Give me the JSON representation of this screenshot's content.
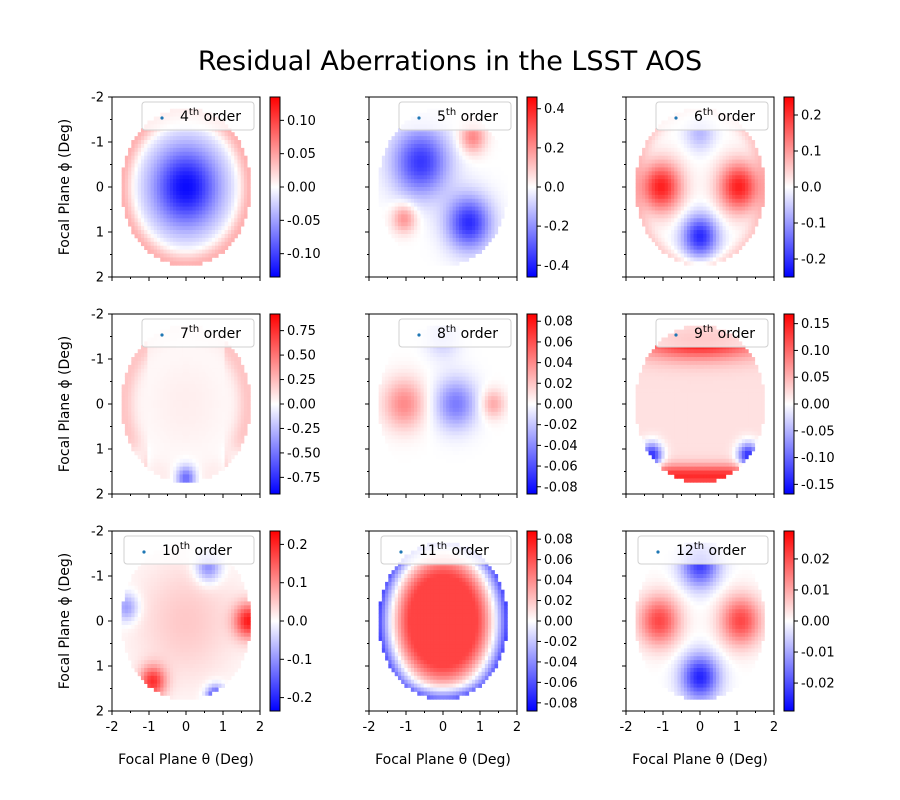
{
  "title": "Residual Aberrations in the LSST AOS",
  "chart_data": {
    "type": "heatmap",
    "title": "Residual Aberrations in the LSST AOS",
    "xlabel": "Focal  Plane  θ  (Deg)",
    "ylabel": "Focal  Plane  ϕ  (Deg)",
    "xlim": [
      -2,
      2
    ],
    "ylim": [
      -2,
      2
    ],
    "xticks": [
      "-2",
      "-1",
      "0",
      "1",
      "2"
    ],
    "yticks": [
      "-2",
      "-1",
      "0",
      "1",
      "2"
    ],
    "colormap": "bwr",
    "colors": {
      "negative": "#0000ff",
      "zero": "#ffffff",
      "positive": "#ff0000",
      "legend_marker": "#1f77b4"
    },
    "legend_placement": "upper right",
    "panels": [
      {
        "label_sup": "th",
        "label_num": "4",
        "label_suffix": " order",
        "vmin": -0.135,
        "vmax": 0.135,
        "cbar_ticks": [
          "0.10",
          "0.05",
          "0.00",
          "-0.05",
          "-0.10"
        ],
        "cbar_values": [
          0.1,
          0.05,
          0.0,
          -0.05,
          -0.1
        ]
      },
      {
        "label_sup": "th",
        "label_num": "5",
        "label_suffix": " order",
        "vmin": -0.46,
        "vmax": 0.46,
        "cbar_ticks": [
          "0.4",
          "0.2",
          "0.0",
          "-0.2",
          "-0.4"
        ],
        "cbar_values": [
          0.4,
          0.2,
          0.0,
          -0.2,
          -0.4
        ]
      },
      {
        "label_sup": "th",
        "label_num": "6",
        "label_suffix": " order",
        "vmin": -0.25,
        "vmax": 0.25,
        "cbar_ticks": [
          "0.2",
          "0.1",
          "0.0",
          "-0.1",
          "-0.2"
        ],
        "cbar_values": [
          0.2,
          0.1,
          0.0,
          -0.1,
          -0.2
        ]
      },
      {
        "label_sup": "th",
        "label_num": "7",
        "label_suffix": " order",
        "vmin": -0.92,
        "vmax": 0.92,
        "cbar_ticks": [
          "0.75",
          "0.50",
          "0.25",
          "0.00",
          "-0.25",
          "-0.50",
          "-0.75"
        ],
        "cbar_values": [
          0.75,
          0.5,
          0.25,
          0,
          -0.25,
          -0.5,
          -0.75
        ]
      },
      {
        "label_sup": "th",
        "label_num": "8",
        "label_suffix": " order",
        "vmin": -0.087,
        "vmax": 0.087,
        "cbar_ticks": [
          "0.08",
          "0.06",
          "0.04",
          "0.02",
          "0.00",
          "-0.02",
          "-0.04",
          "-0.06",
          "-0.08"
        ],
        "cbar_values": [
          0.08,
          0.06,
          0.04,
          0.02,
          0,
          -0.02,
          -0.04,
          -0.06,
          -0.08
        ]
      },
      {
        "label_sup": "th",
        "label_num": "9",
        "label_suffix": " order",
        "vmin": -0.168,
        "vmax": 0.168,
        "cbar_ticks": [
          "0.15",
          "0.10",
          "0.05",
          "0.00",
          "-0.05",
          "-0.10",
          "-0.15"
        ],
        "cbar_values": [
          0.15,
          0.1,
          0.05,
          0,
          -0.05,
          -0.1,
          -0.15
        ]
      },
      {
        "label_sup": "th",
        "label_num": "10",
        "label_suffix": " order",
        "vmin": -0.235,
        "vmax": 0.235,
        "cbar_ticks": [
          "0.2",
          "0.1",
          "0.0",
          "-0.1",
          "-0.2"
        ],
        "cbar_values": [
          0.2,
          0.1,
          0,
          -0.1,
          -0.2
        ]
      },
      {
        "label_sup": "th",
        "label_num": "11",
        "label_suffix": " order",
        "vmin": -0.088,
        "vmax": 0.088,
        "cbar_ticks": [
          "0.08",
          "0.06",
          "0.04",
          "0.02",
          "0.00",
          "-0.02",
          "-0.04",
          "-0.06",
          "-0.08"
        ],
        "cbar_values": [
          0.08,
          0.06,
          0.04,
          0.02,
          0,
          -0.02,
          -0.04,
          -0.06,
          -0.08
        ]
      },
      {
        "label_sup": "th",
        "label_num": "12",
        "label_suffix": " order",
        "vmin": -0.029,
        "vmax": 0.029,
        "cbar_ticks": [
          "0.02",
          "0.01",
          "0.00",
          "-0.01",
          "-0.02"
        ],
        "cbar_values": [
          0.02,
          0.01,
          0,
          -0.01,
          -0.02
        ]
      }
    ]
  }
}
